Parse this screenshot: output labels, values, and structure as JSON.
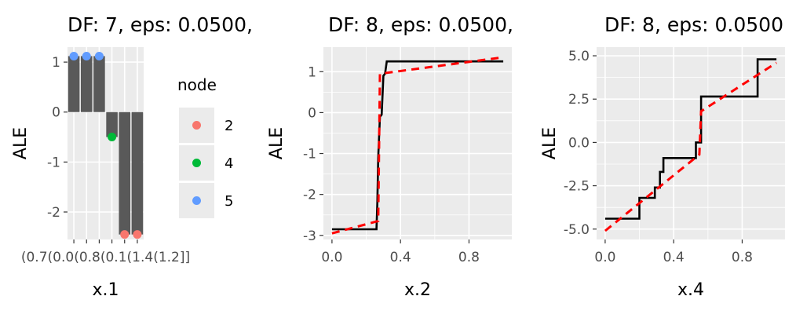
{
  "chart_data": [
    {
      "panel": 1,
      "type": "bar",
      "title": "DF: 7, eps: 0.0500,",
      "xlabel": "x.1",
      "ylabel": "ALE",
      "ylim": [
        -2.55,
        1.3
      ],
      "yticks": [
        -2,
        -1,
        0,
        1
      ],
      "category_labels_overlapping": "(0.7(0.0(0.8(0.1(1.4(1.2]]",
      "bars": [
        1.12,
        1.12,
        1.12,
        -0.5,
        -2.45,
        -2.45
      ],
      "points": [
        {
          "value": 1.12,
          "node": "5"
        },
        {
          "value": 1.12,
          "node": "5"
        },
        {
          "value": 1.12,
          "node": "5"
        },
        {
          "value": -0.5,
          "node": "4"
        },
        {
          "value": -2.45,
          "node": "2"
        },
        {
          "value": -2.45,
          "node": "2"
        }
      ],
      "grid": true
    },
    {
      "panel": 2,
      "type": "line",
      "title": "DF: 8, eps: 0.0500,",
      "xlabel": "x.2",
      "ylabel": "ALE",
      "xlim": [
        -0.05,
        1.05
      ],
      "ylim": [
        -3.1,
        1.6
      ],
      "xticks": [
        0.0,
        0.4,
        0.8
      ],
      "yticks": [
        -3,
        -2,
        -1,
        0,
        1
      ],
      "series": [
        {
          "style": "step",
          "color": "#000000",
          "x": [
            0.0,
            0.26,
            0.265,
            0.27,
            0.28,
            0.29,
            0.3,
            0.31,
            0.32,
            0.6,
            1.0
          ],
          "y": [
            -2.85,
            -2.85,
            -2.2,
            -1.1,
            -0.1,
            -0.05,
            0.9,
            0.95,
            1.25,
            1.25,
            1.25
          ]
        },
        {
          "style": "dashed",
          "color": "#ff0000",
          "x": [
            0.0,
            0.27,
            0.28,
            1.0
          ],
          "y": [
            -2.95,
            -2.65,
            0.95,
            1.35
          ]
        }
      ],
      "grid": true
    },
    {
      "panel": 3,
      "type": "line",
      "title": "DF: 8, eps: 0.0500",
      "xlabel": "x.4",
      "ylabel": "ALE",
      "xlim": [
        -0.05,
        1.05
      ],
      "ylim": [
        -5.6,
        5.5
      ],
      "xticks": [
        0.0,
        0.4,
        0.8
      ],
      "yticks": [
        -5.0,
        -2.5,
        0.0,
        2.5,
        5.0
      ],
      "ytick_labels": [
        "-5.0",
        "-2.5",
        "0.0",
        "2.5",
        "5.0"
      ],
      "series": [
        {
          "style": "step",
          "color": "#000000",
          "x": [
            0.0,
            0.2,
            0.2,
            0.29,
            0.29,
            0.32,
            0.32,
            0.34,
            0.34,
            0.53,
            0.53,
            0.56,
            0.56,
            0.89,
            0.89,
            1.0
          ],
          "y": [
            -4.4,
            -4.4,
            -3.2,
            -3.2,
            -2.6,
            -2.6,
            -1.7,
            -1.7,
            -0.9,
            -0.9,
            0.0,
            0.0,
            2.65,
            2.65,
            4.8,
            4.8
          ]
        },
        {
          "style": "dashed",
          "color": "#ff0000",
          "x": [
            0.0,
            0.55,
            0.56,
            1.0
          ],
          "y": [
            -5.1,
            -0.7,
            1.8,
            4.6
          ]
        }
      ],
      "grid": true
    }
  ],
  "legend": {
    "title": "node",
    "entries": [
      {
        "label": "2",
        "color": "#f8766d"
      },
      {
        "label": "4",
        "color": "#00ba38"
      },
      {
        "label": "5",
        "color": "#619cff"
      }
    ]
  },
  "colors": {
    "panel_bg": "#ebebeb",
    "grid": "#ffffff",
    "bar": "#595959",
    "step_line": "#000000",
    "dashed_line": "#ff0000"
  }
}
